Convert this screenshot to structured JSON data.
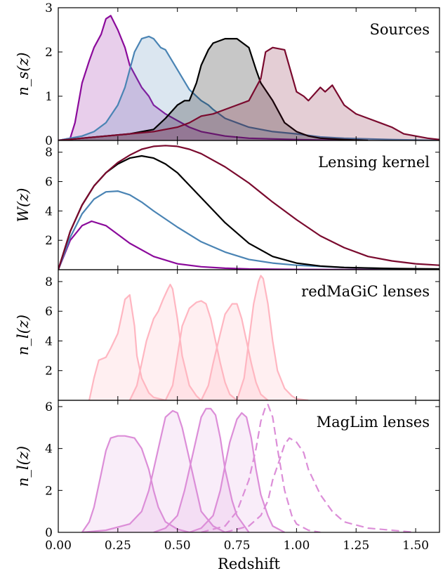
{
  "xlabel": "Redshift",
  "xlim": [
    0,
    1.6
  ],
  "x_ticks": [
    "0.00",
    "0.25",
    "0.50",
    "0.75",
    "1.00",
    "1.25",
    "1.50"
  ],
  "colors": {
    "source_bins": [
      "#8b0a9b",
      "#4a84b4",
      "#000000",
      "#7a0a2e"
    ],
    "redmagic": "#ffb6c1",
    "maglim": "#dc8ed8"
  },
  "chart_data": [
    {
      "type": "area",
      "label": "Sources",
      "ylabel": "n_s(z)",
      "ylim": [
        0,
        3
      ],
      "y_ticks": [
        0,
        1,
        2,
        3
      ],
      "series": [
        {
          "x": [
            0,
            0.05,
            0.07,
            0.1,
            0.13,
            0.15,
            0.18,
            0.2,
            0.22,
            0.25,
            0.28,
            0.3,
            0.33,
            0.35,
            0.38,
            0.4,
            0.45,
            0.5,
            0.55,
            0.6,
            0.65,
            0.7,
            0.8,
            1.0,
            1.2
          ],
          "values": [
            0,
            0.05,
            0.4,
            1.3,
            1.8,
            2.1,
            2.4,
            2.75,
            2.82,
            2.5,
            2.1,
            1.7,
            1.4,
            1.2,
            1.0,
            0.8,
            0.6,
            0.45,
            0.3,
            0.2,
            0.15,
            0.1,
            0.05,
            0.02,
            0
          ]
        },
        {
          "x": [
            0,
            0.1,
            0.15,
            0.2,
            0.25,
            0.28,
            0.3,
            0.32,
            0.35,
            0.38,
            0.4,
            0.43,
            0.45,
            0.5,
            0.55,
            0.6,
            0.63,
            0.65,
            0.7,
            0.75,
            0.8,
            0.9,
            1.0,
            1.1,
            1.2,
            1.4,
            1.6
          ],
          "values": [
            0,
            0.1,
            0.2,
            0.4,
            0.8,
            1.2,
            1.6,
            2.0,
            2.3,
            2.35,
            2.3,
            2.1,
            2.05,
            1.6,
            1.15,
            0.9,
            0.8,
            0.7,
            0.5,
            0.4,
            0.3,
            0.2,
            0.15,
            0.08,
            0.05,
            0.02,
            0
          ]
        },
        {
          "x": [
            0,
            0.1,
            0.2,
            0.3,
            0.4,
            0.45,
            0.5,
            0.53,
            0.55,
            0.58,
            0.6,
            0.63,
            0.65,
            0.7,
            0.75,
            0.8,
            0.83,
            0.85,
            0.9,
            0.93,
            0.95,
            1.0,
            1.05,
            1.1,
            1.2,
            1.3
          ],
          "values": [
            0,
            0.05,
            0.1,
            0.15,
            0.25,
            0.5,
            0.8,
            0.9,
            0.9,
            1.3,
            1.7,
            2.05,
            2.2,
            2.3,
            2.3,
            2.1,
            1.6,
            1.3,
            0.9,
            0.6,
            0.4,
            0.2,
            0.1,
            0.05,
            0.02,
            0
          ]
        },
        {
          "x": [
            0,
            0.1,
            0.2,
            0.3,
            0.4,
            0.5,
            0.55,
            0.6,
            0.65,
            0.7,
            0.75,
            0.8,
            0.85,
            0.87,
            0.9,
            0.95,
            1.0,
            1.03,
            1.05,
            1.1,
            1.12,
            1.15,
            1.2,
            1.25,
            1.3,
            1.35,
            1.4,
            1.45,
            1.5,
            1.55,
            1.6
          ],
          "values": [
            0,
            0.05,
            0.1,
            0.15,
            0.2,
            0.3,
            0.4,
            0.55,
            0.6,
            0.7,
            0.8,
            0.9,
            1.4,
            2.0,
            2.1,
            2.05,
            1.1,
            1.0,
            0.9,
            1.2,
            1.1,
            1.25,
            0.8,
            0.6,
            0.5,
            0.4,
            0.3,
            0.15,
            0.1,
            0.05,
            0.02
          ]
        }
      ]
    },
    {
      "type": "line",
      "label": "Lensing kernel",
      "ylabel": "W(z)",
      "ylim": [
        0,
        8.8
      ],
      "y_ticks": [
        2,
        4,
        6,
        8
      ],
      "series": [
        {
          "x": [
            0,
            0.05,
            0.1,
            0.14,
            0.2,
            0.25,
            0.3,
            0.4,
            0.5,
            0.6,
            0.7,
            0.8,
            1.0,
            1.2,
            1.6
          ],
          "values": [
            0,
            2.0,
            3.0,
            3.3,
            3.0,
            2.4,
            1.8,
            0.9,
            0.4,
            0.2,
            0.1,
            0.05,
            0.02,
            0.01,
            0
          ]
        },
        {
          "x": [
            0,
            0.05,
            0.1,
            0.15,
            0.2,
            0.25,
            0.3,
            0.35,
            0.4,
            0.5,
            0.6,
            0.7,
            0.8,
            0.9,
            1.0,
            1.2,
            1.4,
            1.6
          ],
          "values": [
            0,
            2.2,
            3.8,
            4.8,
            5.3,
            5.35,
            5.1,
            4.6,
            4.0,
            2.9,
            1.9,
            1.2,
            0.7,
            0.45,
            0.3,
            0.15,
            0.07,
            0.03
          ]
        },
        {
          "x": [
            0,
            0.05,
            0.1,
            0.15,
            0.2,
            0.25,
            0.3,
            0.35,
            0.4,
            0.45,
            0.5,
            0.6,
            0.7,
            0.8,
            0.9,
            1.0,
            1.1,
            1.2,
            1.4,
            1.6
          ],
          "values": [
            0,
            2.6,
            4.4,
            5.7,
            6.6,
            7.2,
            7.6,
            7.75,
            7.6,
            7.2,
            6.6,
            4.9,
            3.2,
            1.8,
            0.9,
            0.45,
            0.25,
            0.15,
            0.08,
            0.05
          ]
        },
        {
          "x": [
            0,
            0.05,
            0.1,
            0.15,
            0.2,
            0.25,
            0.3,
            0.35,
            0.4,
            0.45,
            0.5,
            0.55,
            0.6,
            0.7,
            0.8,
            0.9,
            1.0,
            1.1,
            1.2,
            1.3,
            1.4,
            1.5,
            1.6
          ],
          "values": [
            0,
            2.6,
            4.4,
            5.7,
            6.6,
            7.3,
            7.8,
            8.2,
            8.4,
            8.45,
            8.4,
            8.2,
            7.9,
            7.0,
            5.9,
            4.6,
            3.4,
            2.3,
            1.5,
            0.9,
            0.6,
            0.4,
            0.3
          ]
        }
      ]
    },
    {
      "type": "area",
      "label": "redMaGiC lenses",
      "ylabel": "n_l(z)",
      "ylim": [
        0,
        8.8
      ],
      "y_ticks": [
        2,
        4,
        6,
        8
      ],
      "series": [
        {
          "x": [
            0.13,
            0.15,
            0.17,
            0.2,
            0.22,
            0.25,
            0.27,
            0.28,
            0.3,
            0.32,
            0.33,
            0.35,
            0.38,
            0.4,
            0.45
          ],
          "values": [
            0,
            1.5,
            2.7,
            2.9,
            3.5,
            4.5,
            6.0,
            6.8,
            7.1,
            5.0,
            3.0,
            1.5,
            0.5,
            0.2,
            0
          ]
        },
        {
          "x": [
            0.3,
            0.33,
            0.35,
            0.37,
            0.4,
            0.42,
            0.44,
            0.46,
            0.47,
            0.48,
            0.5,
            0.52,
            0.55,
            0.58,
            0.6
          ],
          "values": [
            0,
            1.0,
            2.5,
            4.0,
            5.5,
            6.0,
            6.8,
            7.5,
            7.8,
            7.5,
            5.5,
            3.0,
            1.0,
            0.3,
            0
          ]
        },
        {
          "x": [
            0.45,
            0.48,
            0.5,
            0.52,
            0.55,
            0.58,
            0.6,
            0.62,
            0.64,
            0.66,
            0.68,
            0.7,
            0.72,
            0.75
          ],
          "values": [
            0,
            1.0,
            3.0,
            5.0,
            6.2,
            6.6,
            6.7,
            6.5,
            5.5,
            4.0,
            2.5,
            1.2,
            0.4,
            0
          ]
        },
        {
          "x": [
            0.6,
            0.63,
            0.65,
            0.68,
            0.7,
            0.73,
            0.75,
            0.77,
            0.79,
            0.81,
            0.83,
            0.85,
            0.88
          ],
          "values": [
            0,
            1.0,
            2.5,
            4.5,
            5.8,
            6.5,
            6.5,
            5.5,
            4.0,
            2.5,
            1.2,
            0.4,
            0
          ]
        },
        {
          "x": [
            0.75,
            0.78,
            0.8,
            0.82,
            0.84,
            0.85,
            0.86,
            0.88,
            0.9,
            0.92,
            0.95,
            0.98,
            1.0,
            1.05
          ],
          "values": [
            0,
            1.5,
            4.0,
            6.5,
            8.0,
            8.4,
            8.2,
            6.5,
            4.0,
            2.0,
            0.8,
            0.3,
            0.1,
            0
          ]
        }
      ]
    },
    {
      "type": "area",
      "label": "MagLim lenses",
      "ylabel": "n_l(z)",
      "ylim": [
        0,
        6.3
      ],
      "y_ticks": [
        0,
        2,
        4,
        6
      ],
      "series": [
        {
          "style": "solid",
          "x": [
            0.1,
            0.13,
            0.15,
            0.18,
            0.2,
            0.22,
            0.25,
            0.28,
            0.3,
            0.32,
            0.35,
            0.38,
            0.4,
            0.42,
            0.45,
            0.5,
            0.55
          ],
          "values": [
            0,
            0.5,
            1.2,
            2.8,
            3.9,
            4.5,
            4.6,
            4.6,
            4.55,
            4.5,
            4.0,
            3.0,
            2.0,
            1.2,
            0.5,
            0.15,
            0
          ]
        },
        {
          "style": "solid",
          "x": [
            0.1,
            0.2,
            0.3,
            0.35,
            0.38,
            0.4,
            0.43,
            0.45,
            0.48,
            0.5,
            0.52,
            0.55,
            0.58,
            0.6,
            0.65,
            0.7
          ],
          "values": [
            0,
            0.1,
            0.4,
            1.0,
            2.0,
            3.0,
            4.5,
            5.5,
            5.8,
            5.7,
            5.0,
            3.5,
            2.0,
            1.0,
            0.3,
            0
          ]
        },
        {
          "style": "solid",
          "x": [
            0.4,
            0.45,
            0.5,
            0.53,
            0.55,
            0.58,
            0.6,
            0.62,
            0.64,
            0.66,
            0.68,
            0.7,
            0.73,
            0.75,
            0.8
          ],
          "values": [
            0,
            0.2,
            0.8,
            2.0,
            3.0,
            4.5,
            5.5,
            5.9,
            5.9,
            5.6,
            4.5,
            3.0,
            1.5,
            0.8,
            0
          ]
        },
        {
          "style": "solid",
          "x": [
            0.55,
            0.6,
            0.65,
            0.68,
            0.7,
            0.72,
            0.75,
            0.77,
            0.79,
            0.81,
            0.83,
            0.85,
            0.88,
            0.9,
            0.95
          ],
          "values": [
            0,
            0.2,
            0.8,
            2.0,
            3.2,
            4.3,
            5.4,
            5.7,
            5.5,
            4.5,
            3.0,
            1.8,
            0.8,
            0.3,
            0
          ]
        },
        {
          "style": "dashed",
          "x": [
            0.6,
            0.7,
            0.75,
            0.8,
            0.83,
            0.85,
            0.87,
            0.88,
            0.9,
            0.92,
            0.95,
            0.98,
            1.0,
            1.05,
            1.1
          ],
          "values": [
            0,
            0.3,
            1.0,
            2.5,
            4.0,
            5.3,
            6.0,
            6.1,
            5.5,
            4.0,
            2.0,
            0.8,
            0.4,
            0.1,
            0
          ]
        },
        {
          "style": "dashed",
          "x": [
            0.7,
            0.8,
            0.85,
            0.88,
            0.9,
            0.93,
            0.95,
            0.97,
            1.0,
            1.03,
            1.05,
            1.1,
            1.15,
            1.2,
            1.3,
            1.4,
            1.5
          ],
          "values": [
            0,
            0.3,
            0.8,
            1.5,
            2.5,
            3.5,
            4.2,
            4.5,
            4.3,
            3.8,
            3.0,
            1.8,
            1.0,
            0.5,
            0.2,
            0.1,
            0
          ]
        }
      ]
    }
  ]
}
